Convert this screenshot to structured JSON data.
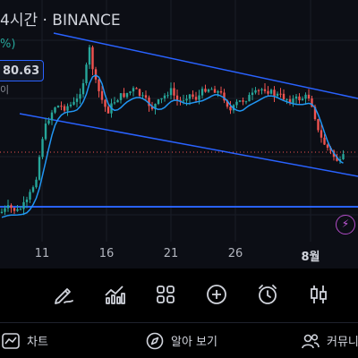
{
  "header": {
    "title": "4시간 · BINANCE",
    "change_pct": "%)"
  },
  "price_tag": {
    "value": "80.63"
  },
  "side_label": "이",
  "x_axis": {
    "labels": [
      "11",
      "16",
      "21",
      "26",
      "8월"
    ]
  },
  "toolbar": {
    "tools": [
      "draw-pen",
      "indicators",
      "layouts",
      "add",
      "alert",
      "chart-type"
    ]
  },
  "bottom_nav": {
    "chart_label": "차트",
    "explore_label": "알아 보기",
    "community_label": "커뮤니티"
  },
  "colors": {
    "up": "#26a69a",
    "down": "#ef5350",
    "trendline": "#2962ff",
    "ma": "#2196f3"
  }
}
